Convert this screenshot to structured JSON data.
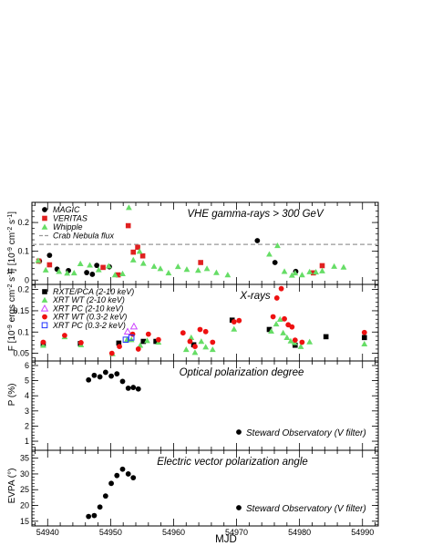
{
  "chart_data": {
    "type": "scatter",
    "shared_x": {
      "label": "MJD",
      "ticks": [
        54940,
        54950,
        54960,
        54970,
        54980,
        54990
      ],
      "range": [
        54937.5,
        54992.5
      ]
    },
    "panels": [
      {
        "id": "vhe",
        "title": "VHE gamma-rays > 300 GeV",
        "ylabel": "F [10^-9 cm^-2 s^-1]",
        "ylim": [
          -0.015,
          0.27
        ],
        "yticks": [
          0,
          0.1,
          0.2
        ],
        "ytick_labels": [
          "0",
          "0.1",
          "0.2"
        ],
        "reference_line": {
          "label": "Crab Nebula flux",
          "y": 0.124,
          "color": "#999999"
        },
        "legend": "top-left",
        "series": [
          {
            "name": "MAGIC",
            "marker": "circle",
            "color": "#000000",
            "points": [
              [
                54938.7,
                0.066
              ],
              [
                54940.3,
                0.086
              ],
              [
                54941.5,
                0.038
              ],
              [
                54943.3,
                0.033
              ],
              [
                54946.2,
                0.026
              ],
              [
                54947.1,
                0.02
              ],
              [
                54947.8,
                0.051
              ],
              [
                54949.8,
                0.046
              ],
              [
                54973.3,
                0.137
              ],
              [
                54976.1,
                0.061
              ],
              [
                54979.4,
                0.03
              ]
            ]
          },
          {
            "name": "VERITAS",
            "marker": "square",
            "color": "#e02020",
            "points": [
              [
                54938.6,
                0.066
              ],
              [
                54940.3,
                0.053
              ],
              [
                54948.8,
                0.044
              ],
              [
                54951.2,
                0.018
              ],
              [
                54952.8,
                0.189
              ],
              [
                54953.6,
                0.097
              ],
              [
                54954.3,
                0.114
              ],
              [
                54955.1,
                0.084
              ],
              [
                54964.3,
                0.061
              ],
              [
                54982.2,
                0.025
              ],
              [
                54983.6,
                0.05
              ]
            ]
          },
          {
            "name": "Whipple",
            "marker": "triangle",
            "color": "#66dd66",
            "points": [
              [
                54938.5,
                0.068
              ],
              [
                54939.7,
                0.035
              ],
              [
                54941.8,
                0.03
              ],
              [
                54943.1,
                0.024
              ],
              [
                54944.2,
                0.025
              ],
              [
                54945.2,
                0.057
              ],
              [
                54946.7,
                0.052
              ],
              [
                54948.1,
                0.036
              ],
              [
                54949.7,
                0.049
              ],
              [
                54950.7,
                0.018
              ],
              [
                54951.9,
                0.022
              ],
              [
                54952.9,
                0.252
              ],
              [
                54953.6,
                0.07
              ],
              [
                54954.6,
                0.1
              ],
              [
                54955.2,
                0.058
              ],
              [
                54956.9,
                0.048
              ],
              [
                54957.9,
                0.04
              ],
              [
                54959.2,
                0.025
              ],
              [
                54960.7,
                0.047
              ],
              [
                54962.1,
                0.037
              ],
              [
                54963.9,
                0.034
              ],
              [
                54965.3,
                0.04
              ],
              [
                54966.8,
                0.026
              ],
              [
                54968.6,
                0.018
              ],
              [
                54975.2,
                0.09
              ],
              [
                54976.5,
                0.12
              ],
              [
                54977.6,
                0.03
              ],
              [
                54978.8,
                0.017
              ],
              [
                54979.3,
                0.025
              ],
              [
                54980.4,
                0.018
              ],
              [
                54981.6,
                0.029
              ],
              [
                54982.6,
                0.028
              ],
              [
                54983.6,
                0.032
              ],
              [
                54985.5,
                0.048
              ],
              [
                54987.0,
                0.045
              ]
            ]
          }
        ]
      },
      {
        "id": "xray",
        "title": "X-rays",
        "ylabel": "F [10^-9 ergs cm^-2 s^-1]",
        "ylim": [
          0.032,
          0.212
        ],
        "yticks": [
          0.05,
          0.1,
          0.15,
          0.2
        ],
        "ytick_labels": [
          "0.05",
          "0.1",
          "0.15",
          "0.2"
        ],
        "legend": "top-left",
        "series": [
          {
            "name": "RXTE/PCA (2-10 keV)",
            "marker": "square",
            "color": "#000000",
            "points": [
              [
                54939.3,
                0.072
              ],
              [
                54945.2,
                0.073
              ],
              [
                54951.3,
                0.074
              ],
              [
                54955.2,
                0.078
              ],
              [
                54957.2,
                0.078
              ],
              [
                54963.2,
                0.07
              ],
              [
                54969.3,
                0.128
              ],
              [
                54975.2,
                0.106
              ],
              [
                54979.3,
                0.069
              ],
              [
                54984.2,
                0.089
              ],
              [
                54990.3,
                0.087
              ]
            ]
          },
          {
            "name": "XRT WT (2-10 keV)",
            "marker": "triangle",
            "color": "#66dd66",
            "points": [
              [
                54939.3,
                0.069
              ],
              [
                54942.7,
                0.089
              ],
              [
                54945.3,
                0.07
              ],
              [
                54950.3,
                0.049
              ],
              [
                54952.6,
                0.082
              ],
              [
                54953.3,
                0.082
              ],
              [
                54954.7,
                0.069
              ],
              [
                54955.8,
                0.08
              ],
              [
                54957.6,
                0.076
              ],
              [
                54962.0,
                0.059
              ],
              [
                54962.8,
                0.087
              ],
              [
                54963.4,
                0.052
              ],
              [
                54964.4,
                0.078
              ],
              [
                54965.1,
                0.065
              ],
              [
                54966.2,
                0.059
              ],
              [
                54969.6,
                0.107
              ],
              [
                54975.5,
                0.102
              ],
              [
                54976.3,
                0.119
              ],
              [
                54976.9,
                0.13
              ],
              [
                54977.4,
                0.098
              ],
              [
                54978.0,
                0.087
              ],
              [
                54978.6,
                0.079
              ],
              [
                54979.2,
                0.075
              ],
              [
                54980.2,
                0.066
              ],
              [
                54981.6,
                0.077
              ],
              [
                54990.3,
                0.072
              ]
            ]
          },
          {
            "name": "XRT PC (2-10 keV)",
            "marker": "open-triangle",
            "color": "#cc44ff",
            "points": [
              [
                54952.7,
                0.101
              ],
              [
                54953.7,
                0.113
              ]
            ]
          },
          {
            "name": "XRT WT (0.3-2 keV)",
            "marker": "circle",
            "color": "#ee1111",
            "points": [
              [
                54939.3,
                0.076
              ],
              [
                54942.7,
                0.092
              ],
              [
                54945.3,
                0.075
              ],
              [
                54950.2,
                0.05
              ],
              [
                54951.4,
                0.066
              ],
              [
                54953.5,
                0.095
              ],
              [
                54954.4,
                0.06
              ],
              [
                54956.0,
                0.095
              ],
              [
                54957.6,
                0.082
              ],
              [
                54961.5,
                0.098
              ],
              [
                54962.6,
                0.078
              ],
              [
                54963.4,
                0.066
              ],
              [
                54964.2,
                0.106
              ],
              [
                54965.1,
                0.101
              ],
              [
                54966.2,
                0.076
              ],
              [
                54969.6,
                0.124
              ],
              [
                54970.4,
                0.127
              ],
              [
                54975.8,
                0.136
              ],
              [
                54976.4,
                0.18
              ],
              [
                54977.1,
                0.202
              ],
              [
                54977.6,
                0.131
              ],
              [
                54978.2,
                0.117
              ],
              [
                54978.8,
                0.112
              ],
              [
                54979.3,
                0.081
              ],
              [
                54980.4,
                0.076
              ],
              [
                54990.3,
                0.099
              ]
            ]
          },
          {
            "name": "XRT PC (0.3-2 keV)",
            "marker": "open-square",
            "color": "#2233ff",
            "points": [
              [
                54952.4,
                0.082
              ],
              [
                54953.3,
                0.087
              ]
            ]
          }
        ]
      },
      {
        "id": "poldeg",
        "title": "Optical polarization degree",
        "ylabel": "P (%)",
        "ylim": [
          0.4,
          6.3
        ],
        "yticks": [
          1,
          2,
          3,
          4,
          5,
          6
        ],
        "ytick_labels": [
          "1",
          "2",
          "3",
          "4",
          "5",
          "6"
        ],
        "note": "Steward Observatory (V filter)",
        "series": [
          {
            "name": "Steward Observatory (V filter)",
            "marker": "circle",
            "color": "#000000",
            "points": [
              [
                54946.5,
                5.05
              ],
              [
                54947.4,
                5.35
              ],
              [
                54948.3,
                5.25
              ],
              [
                54949.2,
                5.55
              ],
              [
                54950.1,
                5.3
              ],
              [
                54951.0,
                5.45
              ],
              [
                54951.9,
                4.95
              ],
              [
                54952.8,
                4.5
              ],
              [
                54953.6,
                4.55
              ],
              [
                54954.4,
                4.45
              ]
            ]
          }
        ]
      },
      {
        "id": "evpa",
        "title": "Electric vector polarization angle",
        "ylabel": "EVPA (°)",
        "ylim": [
          13.5,
          37.5
        ],
        "yticks": [
          15,
          20,
          25,
          30,
          35
        ],
        "ytick_labels": [
          "15",
          "20",
          "25",
          "30",
          "35"
        ],
        "note": "Steward Observatory (V filter)",
        "series": [
          {
            "name": "Steward Observatory (V filter)",
            "marker": "circle",
            "color": "#000000",
            "points": [
              [
                54946.5,
                16.5
              ],
              [
                54947.4,
                16.8
              ],
              [
                54948.3,
                19.5
              ],
              [
                54949.2,
                23.0
              ],
              [
                54950.1,
                27.0
              ],
              [
                54951.0,
                29.5
              ],
              [
                54951.9,
                31.5
              ],
              [
                54952.8,
                30.0
              ],
              [
                54953.6,
                28.8
              ]
            ]
          }
        ]
      }
    ]
  }
}
